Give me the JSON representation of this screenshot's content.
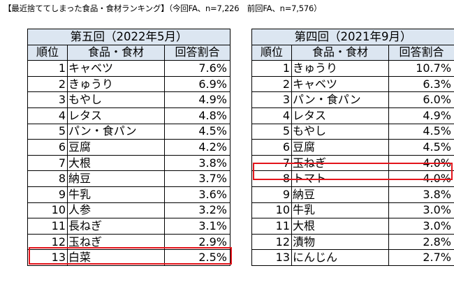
{
  "title": "【最近捨ててしまった食品・食材ランキング】（今回FA、n=7,226　前回FA、n=7,576）",
  "left_table": {
    "caption": "第五回（2022年5月）",
    "headers": [
      "順位",
      "食品・食材",
      "回答割合"
    ],
    "rows": [
      {
        "rank": "1",
        "item": "キャベツ",
        "rate": "7.6%"
      },
      {
        "rank": "2",
        "item": "きゅうり",
        "rate": "6.9%"
      },
      {
        "rank": "3",
        "item": "もやし",
        "rate": "4.9%"
      },
      {
        "rank": "4",
        "item": "レタス",
        "rate": "4.8%"
      },
      {
        "rank": "5",
        "item": "パン・食パン",
        "rate": "4.5%"
      },
      {
        "rank": "6",
        "item": "豆腐",
        "rate": "4.2%"
      },
      {
        "rank": "7",
        "item": "大根",
        "rate": "3.8%"
      },
      {
        "rank": "8",
        "item": "納豆",
        "rate": "3.7%"
      },
      {
        "rank": "9",
        "item": "牛乳",
        "rate": "3.6%"
      },
      {
        "rank": "10",
        "item": "人参",
        "rate": "3.2%"
      },
      {
        "rank": "11",
        "item": "長ねぎ",
        "rate": "3.1%"
      },
      {
        "rank": "12",
        "item": "玉ねぎ",
        "rate": "2.9%"
      },
      {
        "rank": "13",
        "item": "白菜",
        "rate": "2.5%"
      }
    ]
  },
  "right_table": {
    "caption": "第四回（2021年9月）",
    "headers": [
      "順位",
      "食品・食材",
      "回答割合"
    ],
    "rows": [
      {
        "rank": "1",
        "item": "きゅうり",
        "rate": "10.7%"
      },
      {
        "rank": "2",
        "item": "キャベツ",
        "rate": "6.3%"
      },
      {
        "rank": "3",
        "item": "パン・食パン",
        "rate": "6.0%"
      },
      {
        "rank": "4",
        "item": "レタス",
        "rate": "4.9%"
      },
      {
        "rank": "5",
        "item": "もやし",
        "rate": "4.5%"
      },
      {
        "rank": "6",
        "item": "豆腐",
        "rate": "4.5%"
      },
      {
        "rank": "7",
        "item": "玉ねぎ",
        "rate": "4.0%"
      },
      {
        "rank": "8",
        "item": "トマト",
        "rate": "4.0%"
      },
      {
        "rank": "9",
        "item": "納豆",
        "rate": "3.8%"
      },
      {
        "rank": "10",
        "item": "牛乳",
        "rate": "3.0%"
      },
      {
        "rank": "11",
        "item": "大根",
        "rate": "3.0%"
      },
      {
        "rank": "12",
        "item": "漬物",
        "rate": "2.8%"
      },
      {
        "rank": "13",
        "item": "にんじん",
        "rate": "2.7%"
      }
    ]
  },
  "highlight_color": "#e3141b",
  "header_color": "#dce6f1"
}
